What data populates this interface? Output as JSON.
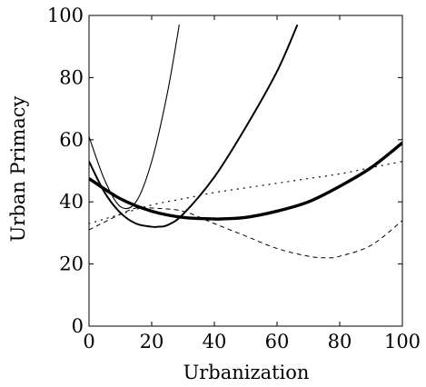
{
  "chart_data": {
    "type": "line",
    "xlabel": "Urbanization",
    "ylabel": "Urban Primacy",
    "xlim": [
      0,
      100
    ],
    "ylim": [
      0,
      100
    ],
    "xticks": [
      "0",
      "20",
      "40",
      "60",
      "80",
      "100"
    ],
    "yticks": [
      "0",
      "20",
      "40",
      "60",
      "80",
      "100"
    ],
    "grid": false,
    "series": [
      {
        "style": "thin-solid",
        "x": [
          0,
          5,
          10,
          15,
          20,
          25,
          28.8
        ],
        "y": [
          61,
          47,
          38.5,
          40,
          53,
          75,
          97
        ]
      },
      {
        "style": "medium-solid",
        "x": [
          0,
          5,
          10,
          15,
          20,
          22,
          25,
          30,
          40,
          50,
          60,
          66.5
        ],
        "y": [
          53,
          43,
          36.5,
          33,
          32,
          32,
          32.5,
          36,
          48,
          64,
          82,
          97
        ]
      },
      {
        "style": "thick-solid",
        "x": [
          0,
          10,
          20,
          30,
          40,
          42,
          50,
          60,
          70,
          80,
          90,
          100
        ],
        "y": [
          47.5,
          41,
          37,
          35,
          34.5,
          34.5,
          35,
          37,
          40,
          45,
          51,
          59
        ]
      },
      {
        "style": "dashed",
        "x": [
          0,
          10,
          15,
          20,
          30,
          40,
          50,
          60,
          70,
          76,
          80,
          90,
          100
        ],
        "y": [
          31,
          36,
          38,
          38,
          37,
          33,
          29,
          25,
          22.5,
          22,
          22.5,
          26,
          34
        ]
      },
      {
        "style": "dotted",
        "x": [
          0,
          10,
          20,
          30,
          40,
          50,
          60,
          70,
          80,
          90,
          100
        ],
        "y": [
          33,
          36,
          39,
          41,
          43,
          44.5,
          46,
          47.5,
          49,
          51,
          53
        ]
      }
    ]
  }
}
